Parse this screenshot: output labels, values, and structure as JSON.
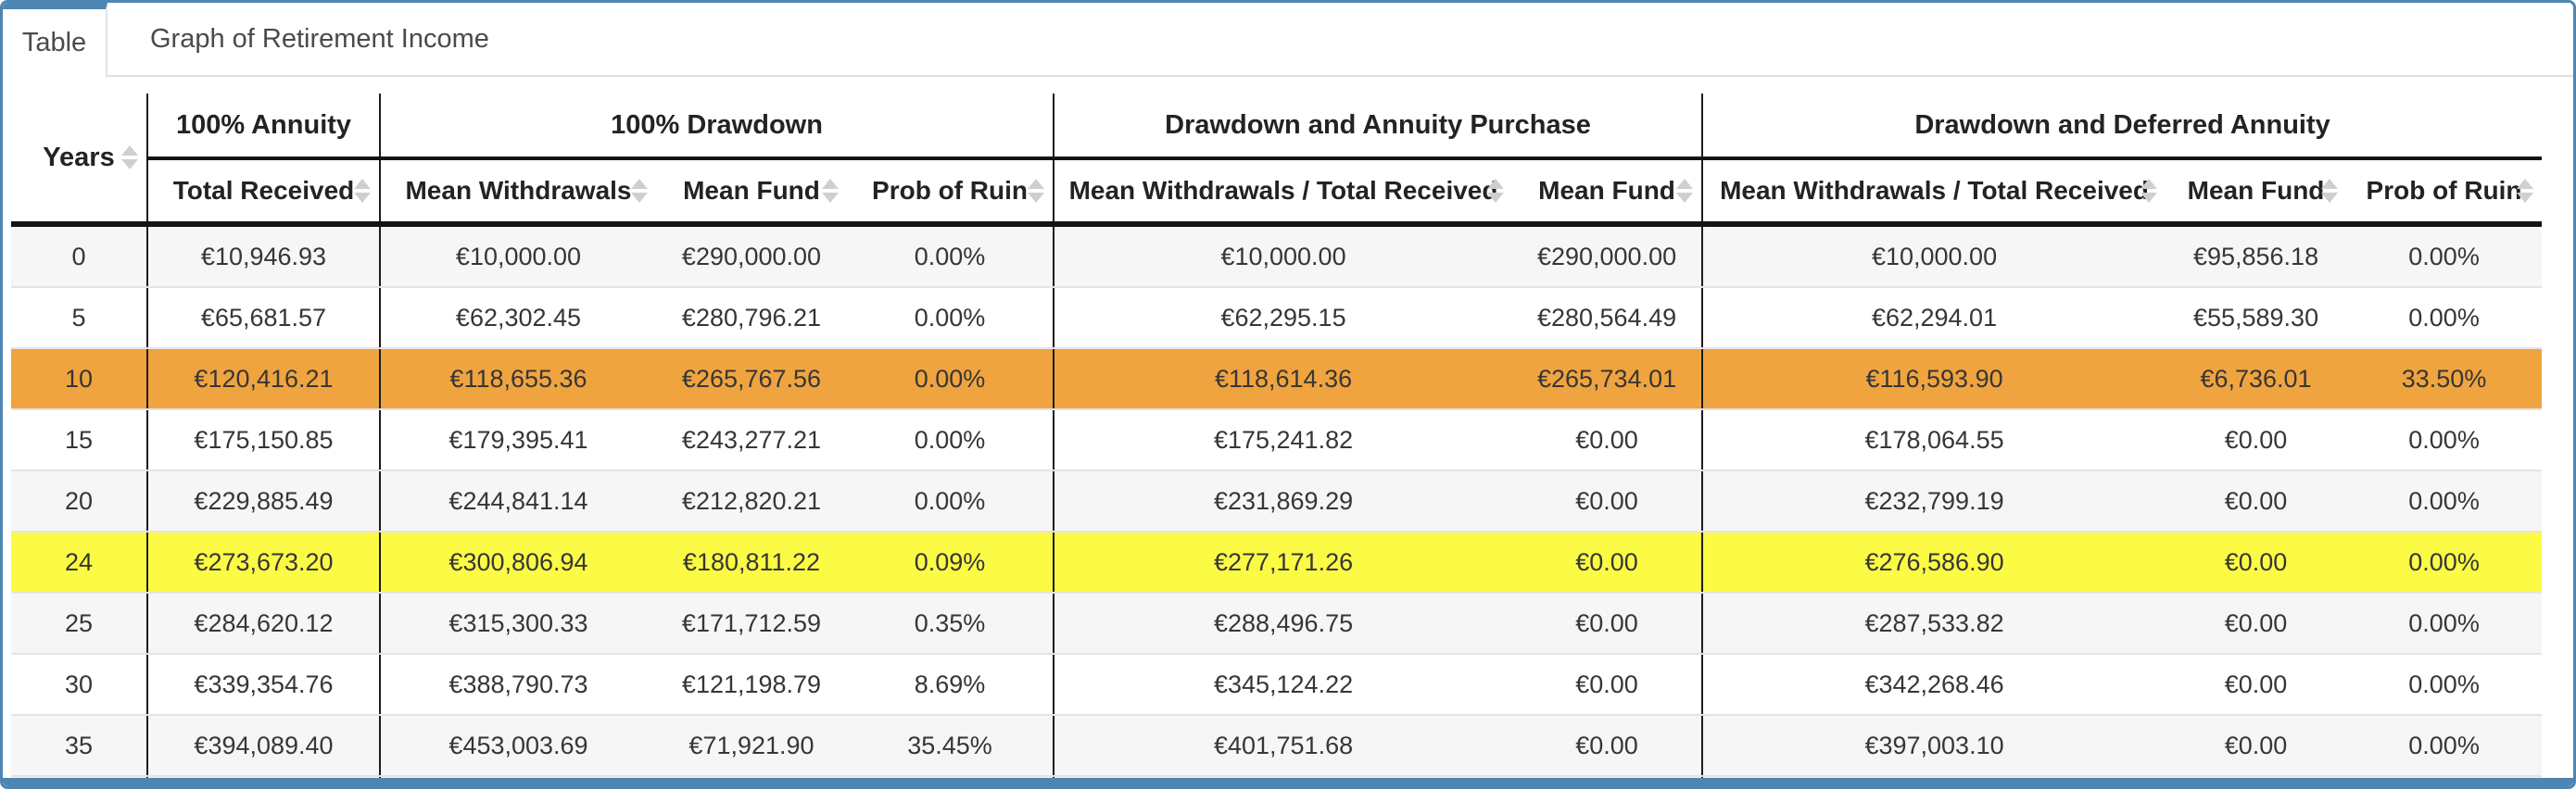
{
  "tabs": [
    {
      "label": "Table",
      "active": true
    },
    {
      "label": "Graph of Retirement Income",
      "active": false
    }
  ],
  "colors": {
    "accent_blue": "#4d86b3",
    "highlight_orange": "#f0a43f",
    "highlight_yellow": "#fbfb45",
    "stripe_gray": "#f6f6f6"
  },
  "table": {
    "corner_header": "Years",
    "sort_icon": "up-down-sort-arrows",
    "groups": [
      {
        "label": "100% Annuity",
        "columns": [
          "Total Received"
        ]
      },
      {
        "label": "100% Drawdown",
        "columns": [
          "Mean Withdrawals",
          "Mean Fund",
          "Prob of Ruin"
        ]
      },
      {
        "label": "Drawdown and Annuity Purchase",
        "columns": [
          "Mean Withdrawals / Total Received",
          "Mean Fund"
        ]
      },
      {
        "label": "Drawdown and Deferred Annuity",
        "columns": [
          "Mean Withdrawals / Total Received",
          "Mean Fund",
          "Prob of Ruin"
        ]
      }
    ],
    "rows": [
      {
        "years": "0",
        "cells": [
          "€10,946.93",
          "€10,000.00",
          "€290,000.00",
          "0.00%",
          "€10,000.00",
          "€290,000.00",
          "€10,000.00",
          "€95,856.18",
          "0.00%"
        ],
        "highlight": null
      },
      {
        "years": "5",
        "cells": [
          "€65,681.57",
          "€62,302.45",
          "€280,796.21",
          "0.00%",
          "€62,295.15",
          "€280,564.49",
          "€62,294.01",
          "€55,589.30",
          "0.00%"
        ],
        "highlight": null
      },
      {
        "years": "10",
        "cells": [
          "€120,416.21",
          "€118,655.36",
          "€265,767.56",
          "0.00%",
          "€118,614.36",
          "€265,734.01",
          "€116,593.90",
          "€6,736.01",
          "33.50%"
        ],
        "highlight": "orange"
      },
      {
        "years": "15",
        "cells": [
          "€175,150.85",
          "€179,395.41",
          "€243,277.21",
          "0.00%",
          "€175,241.82",
          "€0.00",
          "€178,064.55",
          "€0.00",
          "0.00%"
        ],
        "highlight": null
      },
      {
        "years": "20",
        "cells": [
          "€229,885.49",
          "€244,841.14",
          "€212,820.21",
          "0.00%",
          "€231,869.29",
          "€0.00",
          "€232,799.19",
          "€0.00",
          "0.00%"
        ],
        "highlight": null
      },
      {
        "years": "24",
        "cells": [
          "€273,673.20",
          "€300,806.94",
          "€180,811.22",
          "0.09%",
          "€277,171.26",
          "€0.00",
          "€276,586.90",
          "€0.00",
          "0.00%"
        ],
        "highlight": "yellow"
      },
      {
        "years": "25",
        "cells": [
          "€284,620.12",
          "€315,300.33",
          "€171,712.59",
          "0.35%",
          "€288,496.75",
          "€0.00",
          "€287,533.82",
          "€0.00",
          "0.00%"
        ],
        "highlight": null
      },
      {
        "years": "30",
        "cells": [
          "€339,354.76",
          "€388,790.73",
          "€121,198.79",
          "8.69%",
          "€345,124.22",
          "€0.00",
          "€342,268.46",
          "€0.00",
          "0.00%"
        ],
        "highlight": null
      },
      {
        "years": "35",
        "cells": [
          "€394,089.40",
          "€453,003.69",
          "€71,921.90",
          "35.45%",
          "€401,751.68",
          "€0.00",
          "€397,003.10",
          "€0.00",
          "0.00%"
        ],
        "highlight": null
      }
    ]
  }
}
